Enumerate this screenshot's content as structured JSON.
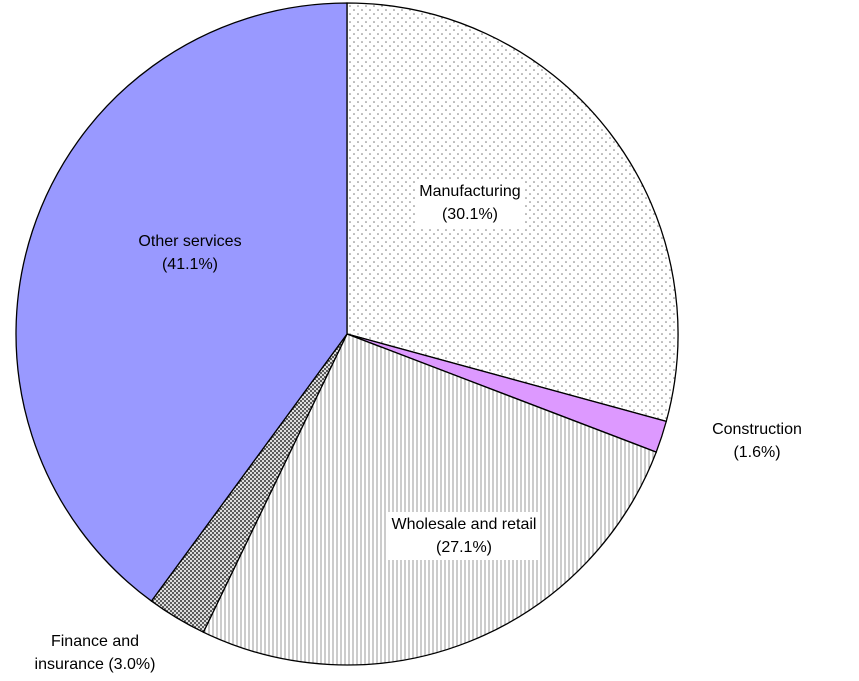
{
  "chart_data": {
    "type": "pie",
    "categories": [
      "Manufacturing",
      "Construction",
      "Wholesale and retail",
      "Finance and insurance",
      "Other services"
    ],
    "values": [
      30.1,
      1.6,
      27.1,
      3.0,
      41.1
    ],
    "value_labels": [
      "(30.1%)",
      "(1.6%)",
      "(27.1%)",
      "(3.0%)",
      "(41.1%)"
    ],
    "colors": [
      "#ffffff",
      "#dd99ff",
      "#ffffff",
      "#444444",
      "#9999ff"
    ],
    "patterns": [
      "dots",
      "solid",
      "vlines",
      "dense-dots",
      "solid"
    ]
  }
}
